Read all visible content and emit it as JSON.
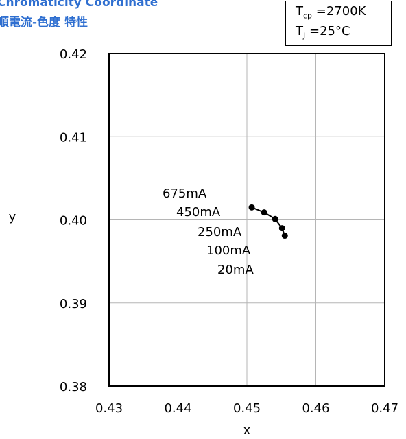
{
  "header": {
    "title_line1": "Chromaticity Coordinate",
    "title_line2": "順電流-色度 特性"
  },
  "conditions": {
    "tcp_symbol": "T",
    "tcp_sub": "cp",
    "tcp_value": "=2700K",
    "tj_symbol": "T",
    "tj_sub": "J",
    "tj_value": "=25°C"
  },
  "chart_data": {
    "type": "line",
    "xlabel": "x",
    "ylabel": "y",
    "xlim": [
      0.43,
      0.47
    ],
    "ylim": [
      0.38,
      0.42
    ],
    "xticks": [
      "0.43",
      "0.44",
      "0.45",
      "0.46",
      "0.47"
    ],
    "yticks": [
      "0.42",
      "0.41",
      "0.40",
      "0.39",
      "0.38"
    ],
    "grid": true,
    "series": [
      {
        "x": [
          0.4507,
          0.4525,
          0.4541,
          0.4551,
          0.4555
        ],
        "y": [
          0.4015,
          0.4009,
          0.4001,
          0.399,
          0.3981
        ]
      }
    ],
    "annotations": [
      "675mA",
      "450mA",
      "250mA",
      "100mA",
      "20mA"
    ],
    "line_color": "#000000"
  }
}
